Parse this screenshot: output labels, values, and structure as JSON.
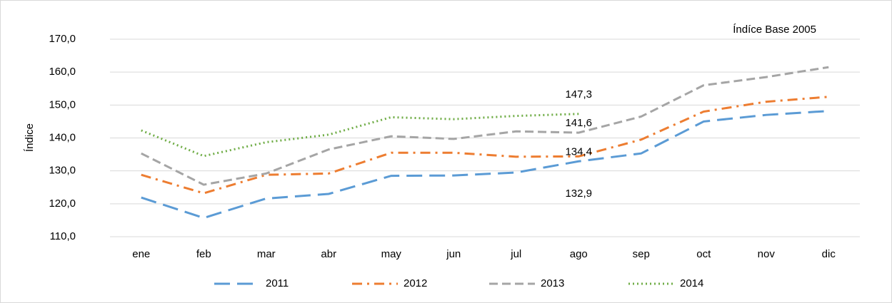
{
  "chart_data": {
    "type": "line",
    "y_label": "Índice",
    "annotation": "Índíce Base 2005",
    "categories": [
      "ene",
      "feb",
      "mar",
      "abr",
      "may",
      "jun",
      "jul",
      "ago",
      "sep",
      "oct",
      "nov",
      "dic"
    ],
    "ylim": [
      110,
      170
    ],
    "yticks": [
      {
        "value": 110,
        "label": "110,0"
      },
      {
        "value": 120,
        "label": "120,0"
      },
      {
        "value": 130,
        "label": "130,0"
      },
      {
        "value": 140,
        "label": "140,0"
      },
      {
        "value": 150,
        "label": "150,0"
      },
      {
        "value": 160,
        "label": "160,0"
      },
      {
        "value": 170,
        "label": "170,0"
      }
    ],
    "grid": true,
    "legend": "bottom",
    "series": [
      {
        "name": "2011",
        "color": "#5b9bd5",
        "dash": "long-dash",
        "values": [
          121.9,
          115.7,
          121.6,
          123.0,
          128.5,
          128.6,
          129.5,
          132.9,
          135.3,
          145.0,
          147.0,
          148.2
        ],
        "value_labels": [
          null,
          null,
          null,
          null,
          null,
          null,
          null,
          "132,9",
          null,
          null,
          null,
          null
        ]
      },
      {
        "name": "2012",
        "color": "#ed7d31",
        "dash": "dash-dot",
        "values": [
          128.8,
          123.2,
          128.8,
          129.2,
          135.5,
          135.5,
          134.3,
          134.4,
          139.5,
          148.0,
          151.0,
          152.5
        ],
        "value_labels": [
          null,
          null,
          null,
          null,
          null,
          null,
          null,
          "134,4",
          null,
          null,
          null,
          null
        ]
      },
      {
        "name": "2013",
        "color": "#a5a5a5",
        "dash": "dash",
        "values": [
          135.3,
          125.8,
          129.2,
          136.5,
          140.5,
          139.7,
          142.0,
          141.6,
          146.5,
          156.0,
          158.5,
          161.5
        ],
        "value_labels": [
          null,
          null,
          null,
          null,
          null,
          null,
          null,
          "141,6",
          null,
          null,
          null,
          null
        ]
      },
      {
        "name": "2014",
        "color": "#70ad47",
        "dash": "dot",
        "values": [
          142.3,
          134.5,
          138.7,
          141.0,
          146.3,
          145.7,
          146.7,
          147.3,
          null,
          null,
          null,
          null
        ],
        "value_labels": [
          null,
          null,
          null,
          null,
          null,
          null,
          null,
          "147,3",
          null,
          null,
          null,
          null
        ]
      }
    ]
  }
}
